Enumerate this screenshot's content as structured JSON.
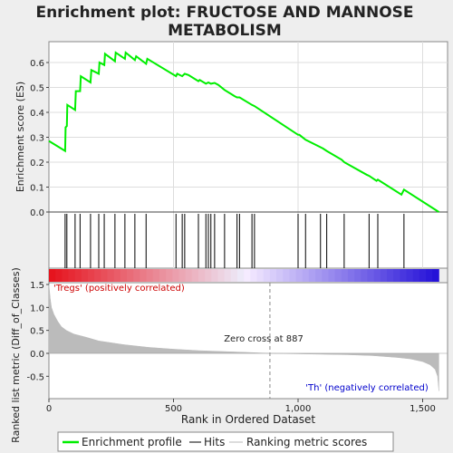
{
  "title_line1": "Enrichment plot: FRUCTOSE AND MANNOSE",
  "title_line2": "METABOLISM",
  "colors": {
    "es_line": "#00ee00",
    "hits": "#000000",
    "metric_fill": "#bbbbbb",
    "zero_cross_line": "#888888",
    "positive_label": "#cc0000",
    "negative_label": "#0000cc"
  },
  "chart_data": [
    {
      "type": "line",
      "name": "enrichment-profile",
      "ylabel": "Enrichment score (ES)",
      "xlim": [
        0,
        1600
      ],
      "ylim": [
        0,
        0.68
      ],
      "yticks": [
        "0.0",
        "0.1",
        "0.2",
        "0.3",
        "0.4",
        "0.5",
        "0.6"
      ],
      "ytick_values": [
        0.0,
        0.1,
        0.2,
        0.3,
        0.4,
        0.5,
        0.6
      ],
      "grid": true,
      "x": [
        0,
        65,
        67,
        72,
        74,
        105,
        108,
        125,
        128,
        167,
        170,
        200,
        203,
        222,
        225,
        265,
        268,
        305,
        308,
        345,
        350,
        390,
        395,
        510,
        515,
        535,
        545,
        560,
        600,
        605,
        630,
        640,
        650,
        665,
        680,
        705,
        745,
        755,
        765,
        815,
        825,
        1000,
        1005,
        1030,
        1090,
        1100,
        1115,
        1175,
        1185,
        1275,
        1285,
        1315,
        1320,
        1415,
        1425,
        1565
      ],
      "y": [
        0.285,
        0.245,
        0.34,
        0.345,
        0.43,
        0.41,
        0.485,
        0.485,
        0.545,
        0.52,
        0.57,
        0.555,
        0.6,
        0.59,
        0.635,
        0.605,
        0.64,
        0.615,
        0.64,
        0.61,
        0.625,
        0.595,
        0.615,
        0.545,
        0.555,
        0.545,
        0.555,
        0.55,
        0.525,
        0.53,
        0.515,
        0.52,
        0.515,
        0.518,
        0.51,
        0.49,
        0.465,
        0.46,
        0.46,
        0.43,
        0.425,
        0.31,
        0.31,
        0.29,
        0.26,
        0.255,
        0.245,
        0.21,
        0.2,
        0.15,
        0.145,
        0.125,
        0.13,
        0.07,
        0.09,
        0.0
      ]
    },
    {
      "type": "bar",
      "name": "hits",
      "x": [
        65,
        72,
        105,
        125,
        167,
        200,
        222,
        265,
        305,
        345,
        390,
        510,
        535,
        545,
        600,
        630,
        640,
        650,
        665,
        705,
        755,
        765,
        815,
        825,
        1000,
        1030,
        1090,
        1115,
        1185,
        1285,
        1320,
        1425
      ]
    },
    {
      "type": "area",
      "name": "ranking-metric",
      "xlabel": "Rank in Ordered Dataset",
      "ylabel": "Ranked list metric (Diff_of_Classes)",
      "xlim": [
        0,
        1600
      ],
      "ylim": [
        -0.85,
        1.55
      ],
      "xticks": [
        "0",
        "500",
        "1,000",
        "1,500"
      ],
      "xtick_values": [
        0,
        500,
        1000,
        1500
      ],
      "yticks": [
        "-0.5",
        "0.0",
        "0.5",
        "1.0",
        "1.5"
      ],
      "ytick_values": [
        -0.5,
        0.0,
        0.5,
        1.0,
        1.5
      ],
      "x": [
        0,
        5,
        10,
        20,
        35,
        50,
        70,
        100,
        150,
        200,
        300,
        400,
        500,
        600,
        700,
        800,
        887,
        1000,
        1100,
        1200,
        1300,
        1400,
        1450,
        1500,
        1530,
        1550,
        1560,
        1565
      ],
      "y": [
        1.5,
        1.2,
        1.0,
        0.85,
        0.7,
        0.58,
        0.5,
        0.42,
        0.35,
        0.27,
        0.19,
        0.13,
        0.09,
        0.06,
        0.04,
        0.02,
        0.0,
        -0.01,
        -0.02,
        -0.03,
        -0.05,
        -0.09,
        -0.12,
        -0.18,
        -0.25,
        -0.35,
        -0.5,
        -0.82
      ],
      "zero_cross": 887,
      "annotations": {
        "positive": "'Tregs' (positively correlated)",
        "negative": "'Th' (negatively correlated)",
        "zero_cross": "Zero cross at 887"
      }
    }
  ],
  "legend": {
    "items": [
      {
        "label": "Enrichment profile",
        "kind": "line",
        "color": "#00ee00"
      },
      {
        "label": "Hits",
        "kind": "line",
        "color": "#000000"
      },
      {
        "label": "Ranking metric scores",
        "kind": "line",
        "color": "#bbbbbb"
      }
    ]
  }
}
